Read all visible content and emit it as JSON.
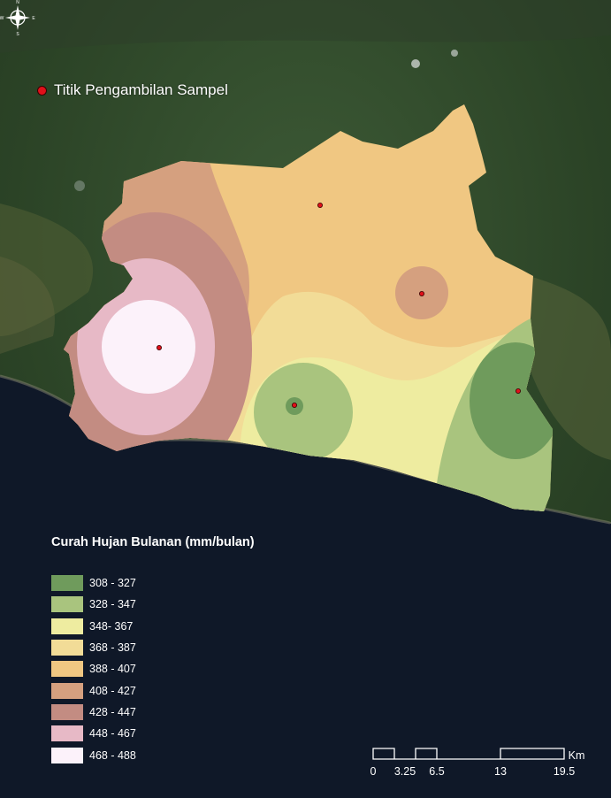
{
  "legend": {
    "sample_label": "Titik Pengambilan Sampel",
    "sample_color": "#e0101a",
    "title": "Curah Hujan Bulanan (mm/bulan)",
    "classes": [
      {
        "label": "308 - 327",
        "color": "#6f9b5c"
      },
      {
        "label": "328 - 347",
        "color": "#a9c47e"
      },
      {
        "label": "348- 367",
        "color": "#eeeca0"
      },
      {
        "label": "368 - 387",
        "color": "#f2dc97"
      },
      {
        "label": "388 - 407",
        "color": "#f0c782"
      },
      {
        "label": "408 - 427",
        "color": "#d5a07f"
      },
      {
        "label": "428 - 447",
        "color": "#c38c82"
      },
      {
        "label": "448 - 467",
        "color": "#e7b9c6"
      },
      {
        "label": "468 - 488",
        "color": "#fcf2fa"
      }
    ]
  },
  "scale_bar": {
    "unit": "Km",
    "ticks": [
      "0",
      "3.25",
      "6.5",
      "13",
      "19.5"
    ]
  },
  "compass": {
    "n": "N",
    "s": "S",
    "e": "E",
    "w": "W"
  }
}
